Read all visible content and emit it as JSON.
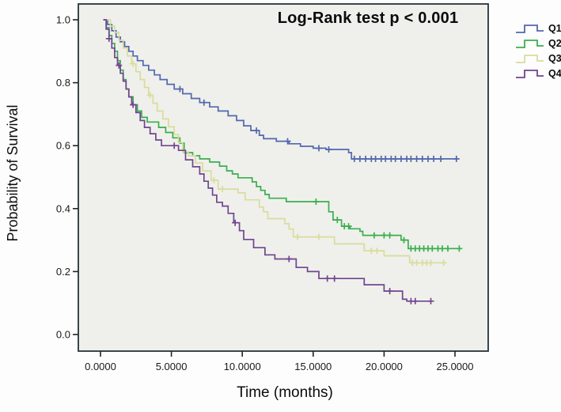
{
  "title": "Log-Rank test p < 0.001",
  "axes": {
    "x": {
      "label": "Time (months)",
      "tick_labels": [
        "0.0000",
        "5.0000",
        "10.0000",
        "15.0000",
        "20.0000",
        "25.0000"
      ],
      "tick_values": [
        0,
        5,
        10,
        15,
        20,
        25
      ],
      "range": [
        0,
        25
      ]
    },
    "y": {
      "label": "Probability of Survival",
      "tick_labels": [
        "1.0",
        "0.8",
        "0.6",
        "0.4",
        "0.2",
        "0.0"
      ],
      "tick_values": [
        1.0,
        0.8,
        0.6,
        0.4,
        0.2,
        0.0
      ],
      "range": [
        0,
        1
      ]
    }
  },
  "colors": {
    "plot_background": "#eff0eb",
    "plot_border": "#26323a",
    "tick_text": "#1a1a1a",
    "q1_blue": "#5267ae",
    "q2_green": "#3bae4f",
    "q3_yellow": "#d9dc9c",
    "q4_purple": "#70458f"
  },
  "legend": {
    "position": "right",
    "items": [
      {
        "label": "Q1",
        "color": "#5267ae"
      },
      {
        "label": "Q2",
        "color": "#3bae4f"
      },
      {
        "label": "Q3",
        "color": "#d9dc9c"
      },
      {
        "label": "Q4",
        "color": "#70458f"
      }
    ]
  },
  "chart_data": {
    "type": "line",
    "subtype": "kaplan-meier-step",
    "title": "Log-Rank test p < 0.001",
    "xlabel": "Time (months)",
    "ylabel": "Probability of Survival",
    "xlim": [
      0,
      25
    ],
    "ylim": [
      0,
      1
    ],
    "grid": false,
    "legend_position": "right",
    "series": [
      {
        "name": "Q1",
        "color": "#5267ae",
        "steps": [
          [
            0.2,
            1.0
          ],
          [
            0.5,
            0.985
          ],
          [
            0.8,
            0.965
          ],
          [
            1.1,
            0.945
          ],
          [
            1.4,
            0.93
          ],
          [
            1.7,
            0.915
          ],
          [
            2.0,
            0.9
          ],
          [
            2.3,
            0.885
          ],
          [
            2.6,
            0.87
          ],
          [
            3.0,
            0.855
          ],
          [
            3.4,
            0.84
          ],
          [
            3.8,
            0.825
          ],
          [
            4.2,
            0.81
          ],
          [
            4.7,
            0.795
          ],
          [
            5.2,
            0.78
          ],
          [
            5.8,
            0.765
          ],
          [
            6.4,
            0.75
          ],
          [
            7.0,
            0.737
          ],
          [
            7.7,
            0.723
          ],
          [
            8.3,
            0.71
          ],
          [
            9.0,
            0.695
          ],
          [
            9.6,
            0.68
          ],
          [
            10.1,
            0.663
          ],
          [
            10.6,
            0.648
          ],
          [
            11.2,
            0.633
          ],
          [
            11.5,
            0.622
          ],
          [
            12.4,
            0.614
          ],
          [
            13.3,
            0.606
          ],
          [
            14.1,
            0.598
          ],
          [
            15.0,
            0.592
          ],
          [
            15.9,
            0.588
          ],
          [
            17.5,
            0.578
          ],
          [
            17.7,
            0.558
          ],
          [
            25.2,
            0.558
          ]
        ],
        "censor_times": [
          5.6,
          7.3,
          11.0,
          13.2,
          15.4,
          16.1,
          17.9,
          18.3,
          18.7,
          19.1,
          19.4,
          19.8,
          20.1,
          20.5,
          20.8,
          21.2,
          21.6,
          21.9,
          22.3,
          22.7,
          23.1,
          23.5,
          24.0,
          25.1
        ]
      },
      {
        "name": "Q2",
        "color": "#3bae4f",
        "steps": [
          [
            0.2,
            1.0
          ],
          [
            0.4,
            0.975
          ],
          [
            0.6,
            0.95
          ],
          [
            0.8,
            0.925
          ],
          [
            1.0,
            0.9
          ],
          [
            1.2,
            0.87
          ],
          [
            1.4,
            0.84
          ],
          [
            1.6,
            0.81
          ],
          [
            1.8,
            0.78
          ],
          [
            2.0,
            0.755
          ],
          [
            2.3,
            0.73
          ],
          [
            2.6,
            0.71
          ],
          [
            2.9,
            0.69
          ],
          [
            3.3,
            0.675
          ],
          [
            4.1,
            0.658
          ],
          [
            4.6,
            0.642
          ],
          [
            5.1,
            0.625
          ],
          [
            5.6,
            0.608
          ],
          [
            5.9,
            0.578
          ],
          [
            6.5,
            0.568
          ],
          [
            7.0,
            0.558
          ],
          [
            7.7,
            0.548
          ],
          [
            8.4,
            0.535
          ],
          [
            8.9,
            0.52
          ],
          [
            9.3,
            0.51
          ],
          [
            9.7,
            0.498
          ],
          [
            10.7,
            0.485
          ],
          [
            11.0,
            0.47
          ],
          [
            11.3,
            0.458
          ],
          [
            11.6,
            0.445
          ],
          [
            11.9,
            0.433
          ],
          [
            13.1,
            0.422
          ],
          [
            16.1,
            0.39
          ],
          [
            16.4,
            0.364
          ],
          [
            17.0,
            0.344
          ],
          [
            17.6,
            0.336
          ],
          [
            18.3,
            0.328
          ],
          [
            18.5,
            0.315
          ],
          [
            21.2,
            0.3
          ],
          [
            21.7,
            0.273
          ],
          [
            25.4,
            0.273
          ]
        ],
        "censor_times": [
          15.2,
          16.7,
          17.2,
          17.5,
          19.3,
          20.0,
          20.4,
          21.4,
          21.9,
          22.2,
          22.5,
          22.8,
          23.1,
          23.4,
          23.8,
          24.1,
          24.5,
          25.3
        ]
      },
      {
        "name": "Q3",
        "color": "#d9dc9c",
        "steps": [
          [
            0.3,
            1.0
          ],
          [
            0.7,
            0.98
          ],
          [
            1.0,
            0.96
          ],
          [
            1.3,
            0.935
          ],
          [
            1.6,
            0.91
          ],
          [
            1.9,
            0.885
          ],
          [
            2.2,
            0.86
          ],
          [
            2.5,
            0.835
          ],
          [
            2.8,
            0.81
          ],
          [
            3.1,
            0.785
          ],
          [
            3.4,
            0.76
          ],
          [
            3.7,
            0.735
          ],
          [
            4.0,
            0.71
          ],
          [
            4.4,
            0.685
          ],
          [
            4.8,
            0.66
          ],
          [
            5.2,
            0.635
          ],
          [
            5.5,
            0.61
          ],
          [
            5.8,
            0.58
          ],
          [
            6.2,
            0.568
          ],
          [
            6.7,
            0.545
          ],
          [
            7.2,
            0.52
          ],
          [
            7.8,
            0.49
          ],
          [
            8.3,
            0.462
          ],
          [
            9.7,
            0.45
          ],
          [
            10.2,
            0.428
          ],
          [
            11.2,
            0.405
          ],
          [
            11.5,
            0.39
          ],
          [
            11.8,
            0.368
          ],
          [
            13.0,
            0.352
          ],
          [
            13.3,
            0.335
          ],
          [
            13.6,
            0.31
          ],
          [
            16.5,
            0.288
          ],
          [
            18.6,
            0.266
          ],
          [
            20.0,
            0.25
          ],
          [
            21.8,
            0.228
          ],
          [
            24.3,
            0.228
          ]
        ],
        "censor_times": [
          2.3,
          3.5,
          8.0,
          8.6,
          13.9,
          15.4,
          19.1,
          19.5,
          22.0,
          22.3,
          22.7,
          23.0,
          23.3,
          24.2
        ]
      },
      {
        "name": "Q4",
        "color": "#70458f",
        "steps": [
          [
            0.2,
            1.0
          ],
          [
            0.4,
            0.97
          ],
          [
            0.6,
            0.94
          ],
          [
            0.8,
            0.91
          ],
          [
            1.0,
            0.88
          ],
          [
            1.2,
            0.855
          ],
          [
            1.4,
            0.83
          ],
          [
            1.6,
            0.805
          ],
          [
            1.8,
            0.78
          ],
          [
            2.0,
            0.755
          ],
          [
            2.2,
            0.73
          ],
          [
            2.5,
            0.705
          ],
          [
            2.8,
            0.68
          ],
          [
            3.1,
            0.658
          ],
          [
            3.5,
            0.638
          ],
          [
            3.9,
            0.618
          ],
          [
            4.3,
            0.6
          ],
          [
            5.5,
            0.585
          ],
          [
            6.0,
            0.555
          ],
          [
            6.5,
            0.533
          ],
          [
            7.0,
            0.51
          ],
          [
            7.3,
            0.487
          ],
          [
            7.6,
            0.465
          ],
          [
            7.9,
            0.443
          ],
          [
            8.2,
            0.42
          ],
          [
            8.6,
            0.408
          ],
          [
            9.0,
            0.385
          ],
          [
            9.4,
            0.355
          ],
          [
            9.8,
            0.33
          ],
          [
            10.1,
            0.302
          ],
          [
            10.8,
            0.276
          ],
          [
            11.6,
            0.253
          ],
          [
            12.3,
            0.24
          ],
          [
            13.8,
            0.213
          ],
          [
            14.6,
            0.2
          ],
          [
            15.4,
            0.178
          ],
          [
            18.6,
            0.158
          ],
          [
            20.0,
            0.138
          ],
          [
            21.3,
            0.112
          ],
          [
            21.6,
            0.106
          ],
          [
            23.3,
            0.106
          ]
        ],
        "censor_times": [
          0.6,
          1.3,
          2.3,
          5.2,
          9.5,
          13.3,
          16.0,
          16.5,
          20.4,
          21.9,
          22.2,
          23.3
        ]
      }
    ]
  }
}
